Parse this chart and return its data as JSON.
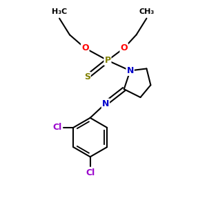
{
  "bg_color": "#ffffff",
  "atom_colors": {
    "C": "#000000",
    "O": "#ff0000",
    "P": "#808000",
    "S": "#808000",
    "N": "#0000cc",
    "Cl": "#9900cc"
  },
  "bond_color": "#000000"
}
